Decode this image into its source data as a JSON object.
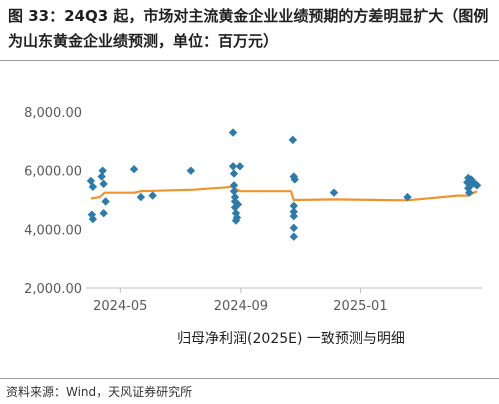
{
  "figure": {
    "title": "图 33：24Q3 起，市场对主流黄金企业业绩预期的方差明显扩大（图例为山东黄金企业绩预测，单位：百万元）",
    "source": "资料来源：Wind，天风证券研究所"
  },
  "chart_data": {
    "type": "scatter",
    "title": "",
    "xlabel": "归母净利润(2025E) 一致预测与明细",
    "ylabel": "",
    "x_ticks": [
      "2024-05",
      "2024-09",
      "2025-01"
    ],
    "y_ticks": [
      "2,000.00",
      "4,000.00",
      "6,000.00",
      "8,000.00"
    ],
    "ylim": [
      2000,
      8000
    ],
    "xlim": [
      "2024-03-27",
      "2025-05-05"
    ],
    "grid": false,
    "colors": {
      "points": "#2e7aa8",
      "line": "#f0922e",
      "axis": "#bfbfbf"
    },
    "series": [
      {
        "kind": "points",
        "points": [
          [
            "2024-04-01",
            5650
          ],
          [
            "2024-04-02",
            4500
          ],
          [
            "2024-04-03",
            5450
          ],
          [
            "2024-04-03",
            4350
          ],
          [
            "2024-04-12",
            5800
          ],
          [
            "2024-04-13",
            6000
          ],
          [
            "2024-04-14",
            4550
          ],
          [
            "2024-04-14",
            5550
          ],
          [
            "2024-04-16",
            4950
          ],
          [
            "2024-05-15",
            6050
          ],
          [
            "2024-05-22",
            5100
          ],
          [
            "2024-06-03",
            5150
          ],
          [
            "2024-07-12",
            6000
          ],
          [
            "2024-08-24",
            7300
          ],
          [
            "2024-08-24",
            6150
          ],
          [
            "2024-08-25",
            5900
          ],
          [
            "2024-08-25",
            5500
          ],
          [
            "2024-08-25",
            5300
          ],
          [
            "2024-08-26",
            5100
          ],
          [
            "2024-08-26",
            4950
          ],
          [
            "2024-08-26",
            4750
          ],
          [
            "2024-08-27",
            4550
          ],
          [
            "2024-08-27",
            4300
          ],
          [
            "2024-08-28",
            4400
          ],
          [
            "2024-08-29",
            4850
          ],
          [
            "2024-08-31",
            6150
          ],
          [
            "2024-10-24",
            7050
          ],
          [
            "2024-10-25",
            5800
          ],
          [
            "2024-10-26",
            5700
          ],
          [
            "2024-10-25",
            4800
          ],
          [
            "2024-10-25",
            4600
          ],
          [
            "2024-10-25",
            4450
          ],
          [
            "2024-10-25",
            4050
          ],
          [
            "2024-10-25",
            3750
          ],
          [
            "2024-12-05",
            5250
          ],
          [
            "2025-02-18",
            5100
          ],
          [
            "2025-04-20",
            5600
          ],
          [
            "2025-04-21",
            5750
          ],
          [
            "2025-04-21",
            5400
          ],
          [
            "2025-04-22",
            5250
          ],
          [
            "2025-04-23",
            5500
          ],
          [
            "2025-04-24",
            5700
          ],
          [
            "2025-04-25",
            5550
          ],
          [
            "2025-04-26",
            5600
          ],
          [
            "2025-04-28",
            5550
          ],
          [
            "2025-04-30",
            5500
          ]
        ]
      },
      {
        "kind": "line",
        "points": [
          [
            "2024-04-01",
            5050
          ],
          [
            "2024-04-10",
            5100
          ],
          [
            "2024-04-15",
            5250
          ],
          [
            "2024-05-05",
            5250
          ],
          [
            "2024-05-15",
            5250
          ],
          [
            "2024-05-22",
            5300
          ],
          [
            "2024-07-15",
            5350
          ],
          [
            "2024-08-24",
            5450
          ],
          [
            "2024-08-27",
            5380
          ],
          [
            "2024-08-31",
            5300
          ],
          [
            "2024-10-22",
            5300
          ],
          [
            "2024-10-25",
            5000
          ],
          [
            "2024-12-05",
            5020
          ],
          [
            "2025-02-18",
            4990
          ],
          [
            "2025-04-10",
            5150
          ],
          [
            "2025-04-20",
            5150
          ],
          [
            "2025-04-30",
            5300
          ]
        ]
      }
    ]
  }
}
